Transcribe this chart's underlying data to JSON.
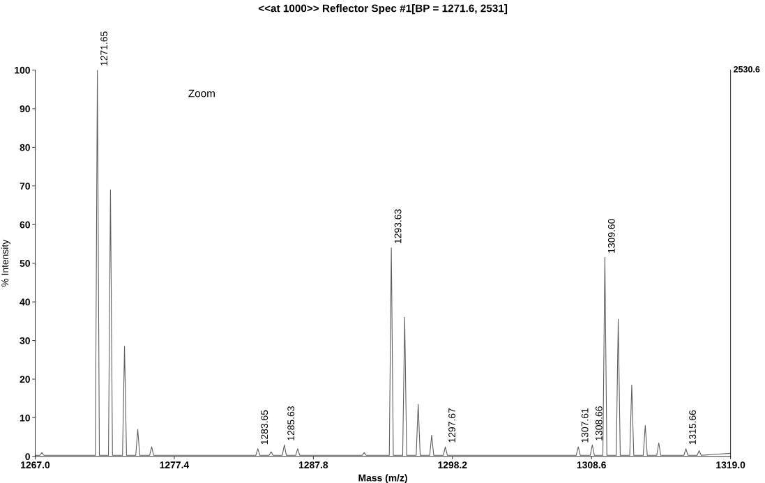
{
  "chart_data": {
    "type": "line",
    "title": "<<at 1000>> Reflector Spec #1[BP = 1271.6, 2531]",
    "xlabel": "Mass (m/z)",
    "ylabel": "% Intensity",
    "xlim": [
      1267.0,
      1319.0
    ],
    "ylim": [
      0,
      100
    ],
    "xticks": [
      {
        "value": 1267.0,
        "label": "1267.0"
      },
      1277.4,
      1287.8,
      1298.2,
      1308.6,
      {
        "value": 1319.0,
        "label": "1319.0"
      }
    ],
    "yticks": [
      0,
      10,
      20,
      30,
      40,
      50,
      60,
      70,
      80,
      90,
      100
    ],
    "grid": false,
    "legend": false,
    "marker": "none",
    "line_style": "solid",
    "series": [
      {
        "color": "#606060",
        "x": [
          1267.0,
          1267.35,
          1267.5,
          1267.65,
          1271.5,
          1271.65,
          1271.8,
          1272.48,
          1272.63,
          1272.78,
          1273.53,
          1273.68,
          1273.83,
          1274.52,
          1274.67,
          1274.82,
          1275.56,
          1275.71,
          1275.86,
          1283.5,
          1283.65,
          1283.8,
          1284.49,
          1284.64,
          1284.79,
          1285.48,
          1285.63,
          1285.78,
          1286.48,
          1286.63,
          1286.78,
          1291.45,
          1291.6,
          1291.75,
          1293.48,
          1293.63,
          1293.78,
          1294.48,
          1294.63,
          1294.78,
          1295.49,
          1295.64,
          1295.79,
          1296.5,
          1296.65,
          1296.8,
          1297.52,
          1297.67,
          1297.82,
          1307.46,
          1307.61,
          1307.76,
          1308.51,
          1308.66,
          1308.81,
          1309.45,
          1309.6,
          1309.75,
          1310.45,
          1310.6,
          1310.75,
          1311.46,
          1311.61,
          1311.76,
          1312.47,
          1312.62,
          1312.77,
          1313.48,
          1313.63,
          1313.78,
          1315.51,
          1315.66,
          1315.81,
          1316.5,
          1316.65,
          1316.8,
          1319.0
        ],
        "values": [
          0.3,
          0.3,
          1.0,
          0.3,
          0.3,
          100,
          0.3,
          0.3,
          69,
          0.3,
          0.3,
          28.5,
          0.3,
          0.3,
          7,
          0.3,
          0.3,
          2.5,
          0.3,
          0.3,
          2,
          0.3,
          0.3,
          1.2,
          0.3,
          0.3,
          3,
          0.3,
          0.3,
          2,
          0.3,
          0.3,
          1,
          0.3,
          0.3,
          54,
          0.3,
          0.3,
          36,
          0.3,
          0.3,
          13.5,
          0.3,
          0.3,
          5.5,
          0.3,
          0.3,
          2.5,
          0.3,
          0.3,
          2.5,
          0.3,
          0.3,
          3,
          0.3,
          0.3,
          51.5,
          0.3,
          0.3,
          35.5,
          0.3,
          0.3,
          18.5,
          0.3,
          0.3,
          8,
          0.3,
          0.3,
          3.5,
          0.3,
          0.3,
          2,
          0.3,
          0.3,
          1.5,
          0.3,
          0.8
        ]
      }
    ],
    "annotations": [
      "Zoom",
      "2530.6",
      {
        "text": "1271.65",
        "x": 1271.65,
        "y": 100
      },
      {
        "text": "1283.65",
        "x": 1283.65,
        "y": 2
      },
      {
        "text": "1285.63",
        "x": 1285.63,
        "y": 3
      },
      {
        "text": "1293.63",
        "x": 1293.63,
        "y": 54
      },
      {
        "text": "1297.67",
        "x": 1297.67,
        "y": 2.5
      },
      {
        "text": "1307.61",
        "x": 1307.61,
        "y": 2.5
      },
      {
        "text": "1308.66",
        "x": 1308.66,
        "y": 3
      },
      {
        "text": "1309.60",
        "x": 1309.6,
        "y": 51.5
      },
      {
        "text": "1315.66",
        "x": 1315.66,
        "y": 2
      }
    ]
  }
}
